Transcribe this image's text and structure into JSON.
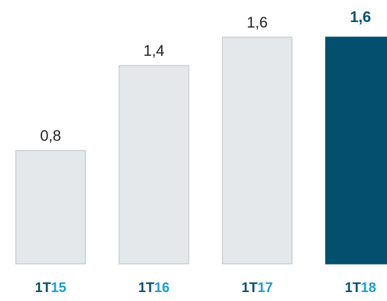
{
  "chart_data": {
    "type": "bar",
    "categories": [
      "1T15",
      "1T16",
      "1T17",
      "1T18"
    ],
    "values": [
      0.8,
      1.4,
      1.6,
      1.6
    ],
    "value_labels": [
      "0,8",
      "1,4",
      "1,6",
      "1,6"
    ],
    "colors": [
      "#e4e8ea",
      "#e4e8ea",
      "#e4e8ea",
      "#02506e"
    ],
    "ylim": [
      0,
      1.6
    ]
  }
}
